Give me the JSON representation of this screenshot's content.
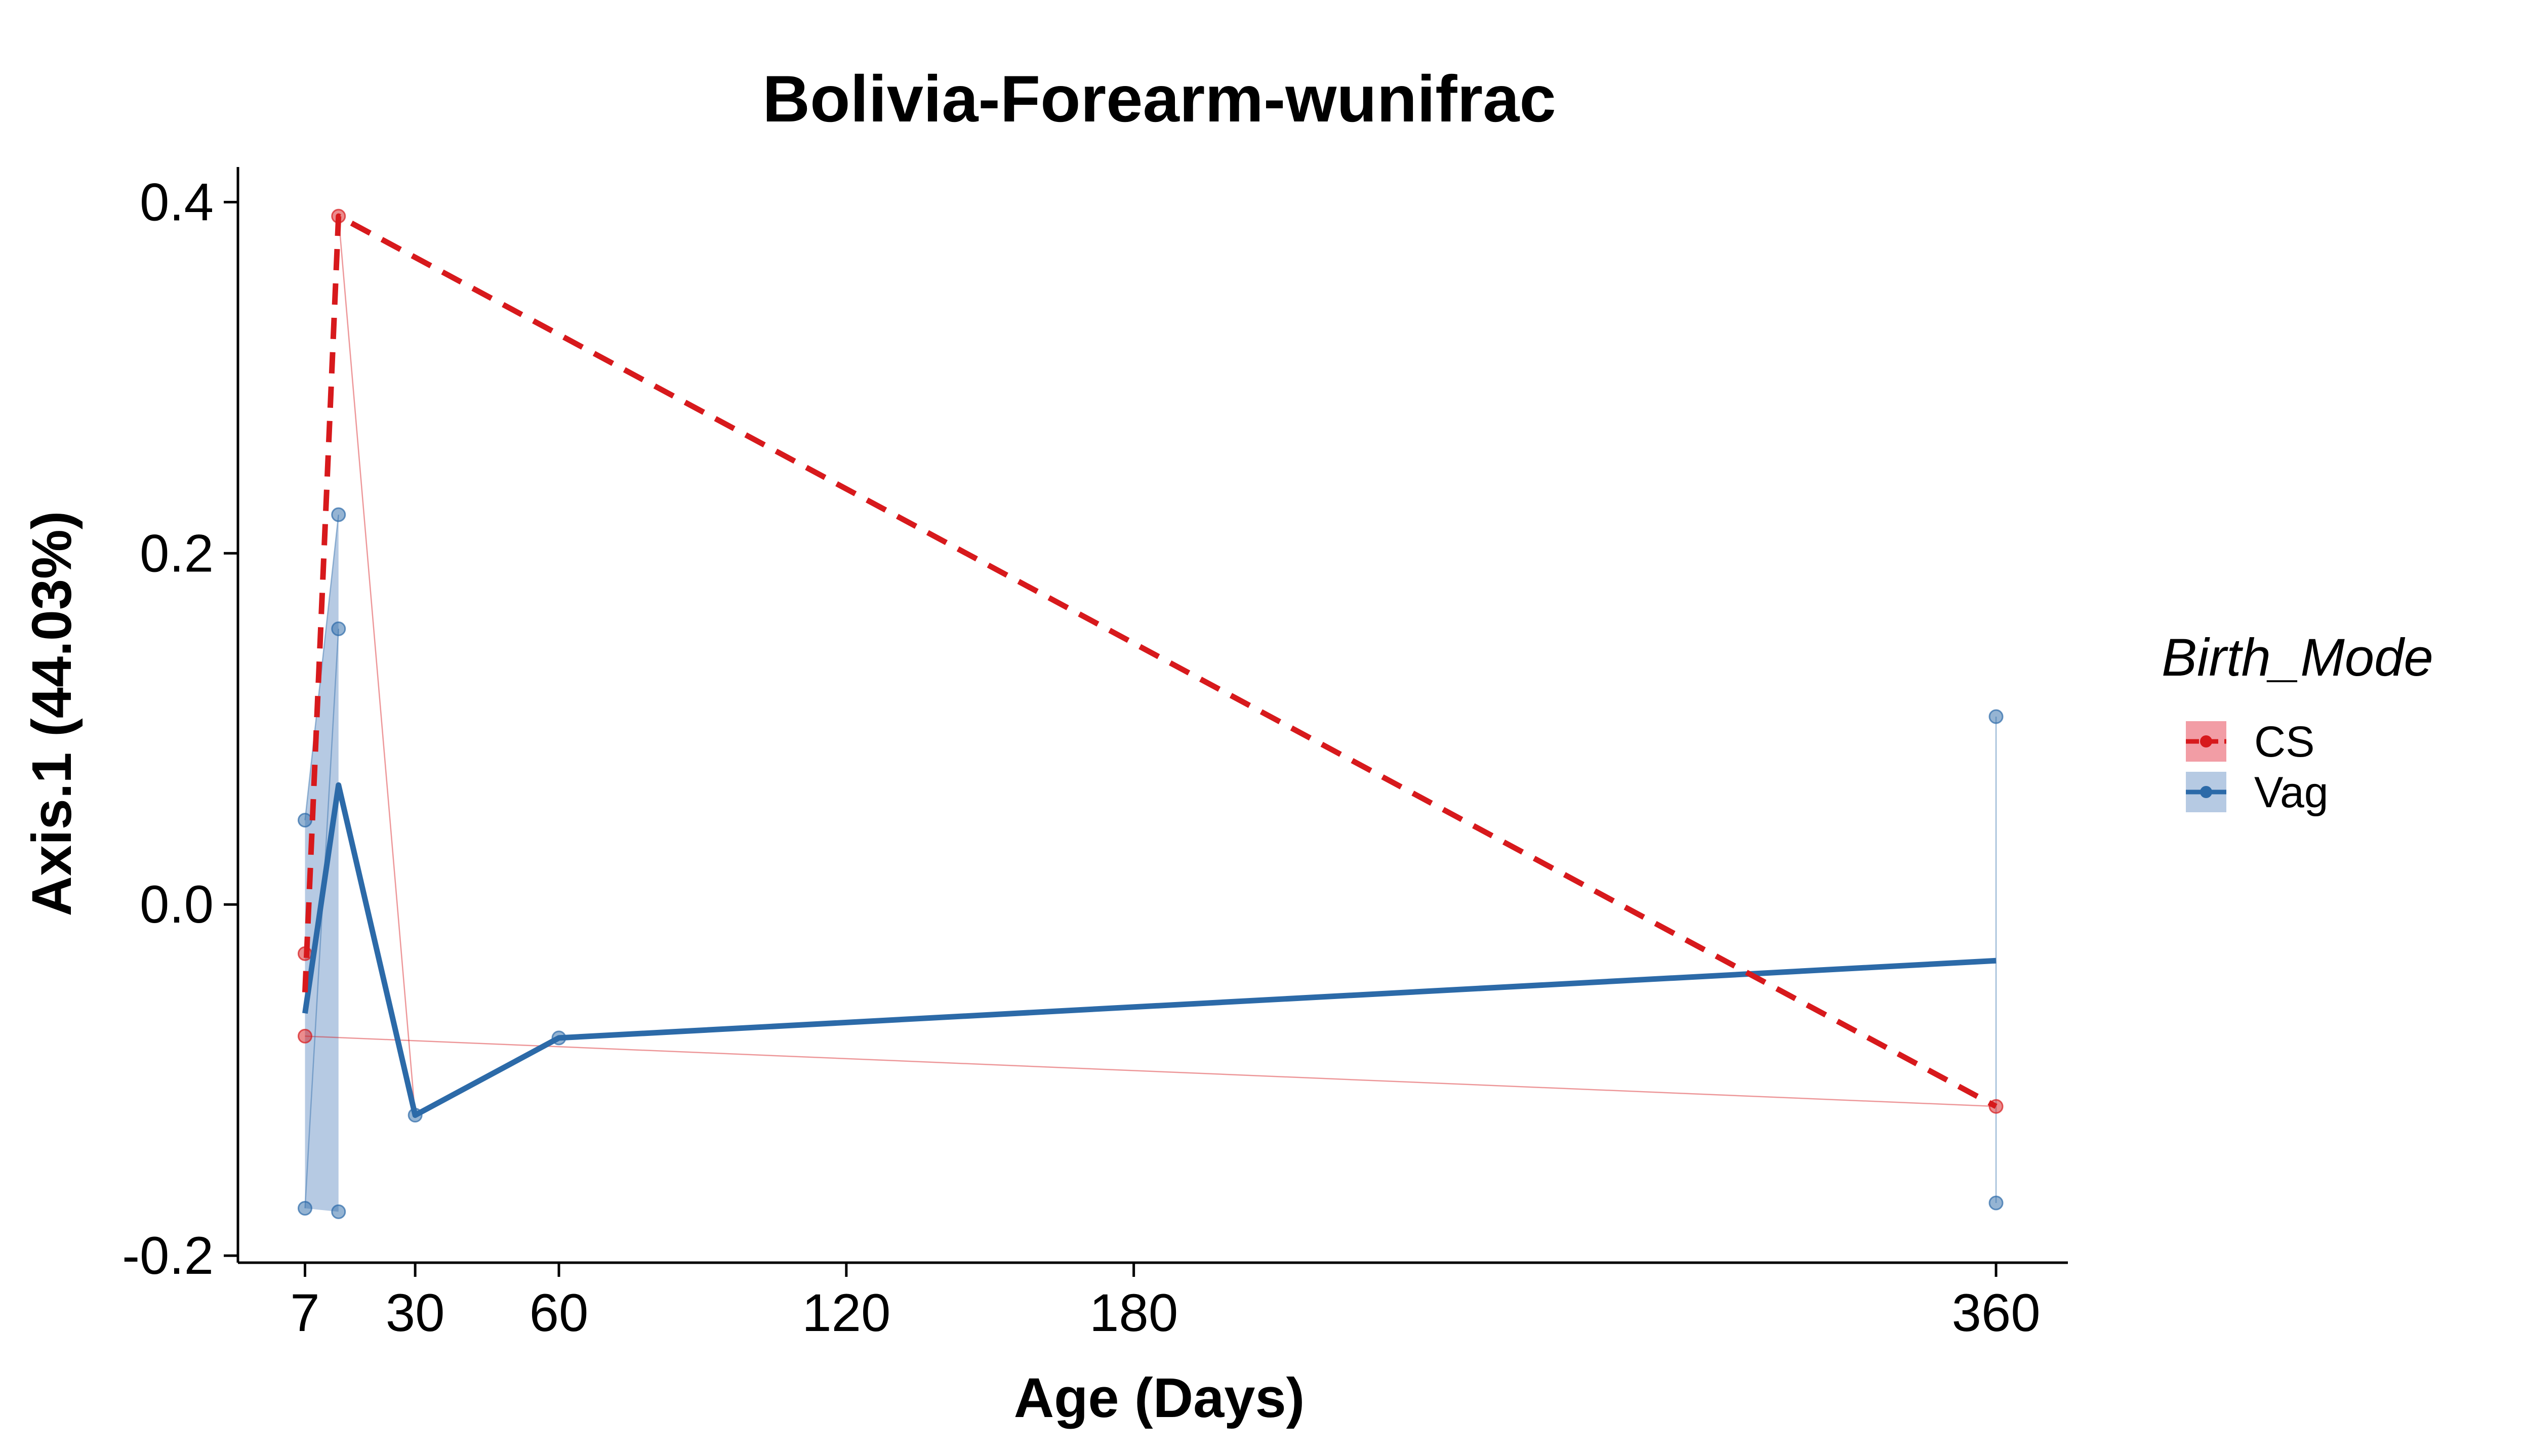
{
  "chart_data": {
    "type": "line",
    "title": "Bolivia-Forearm-wunifrac",
    "xlabel": "Age (Days)",
    "ylabel": "Axis.1 (44.03%)",
    "xlim": [
      -7,
      375
    ],
    "ylim": [
      -0.204,
      0.42
    ],
    "x_ticks": [
      7,
      30,
      60,
      120,
      180,
      360
    ],
    "x_tick_labels": [
      "7",
      "30",
      "60",
      "120",
      "180",
      "360"
    ],
    "y_ticks": [
      -0.2,
      0.0,
      0.2,
      0.4
    ],
    "y_tick_labels": [
      "-0.2",
      "0.0",
      "0.2",
      "0.4"
    ],
    "legend": {
      "title": "Birth_Mode",
      "position": "right",
      "entries": [
        {
          "label": "CS",
          "color": "#d7191c",
          "fill": "#f08c95",
          "linestyle": "dashed"
        },
        {
          "label": "Vag",
          "color": "#2c6aa8",
          "fill": "#a9c1de",
          "linestyle": "solid"
        }
      ]
    },
    "series": [
      {
        "name": "CS",
        "color": "#d7191c",
        "linestyle": "dashed",
        "mean_line": [
          {
            "x": 7,
            "y": -0.05
          },
          {
            "x": 14,
            "y": 0.392
          },
          {
            "x": 360,
            "y": -0.115
          }
        ],
        "points": [
          {
            "x": 7,
            "y": -0.028
          },
          {
            "x": 7,
            "y": -0.075
          },
          {
            "x": 14,
            "y": 0.392
          },
          {
            "x": 360,
            "y": -0.115
          }
        ],
        "subject_traces": [
          [
            {
              "x": 7,
              "y": -0.075
            },
            {
              "x": 360,
              "y": -0.115
            }
          ],
          [
            {
              "x": 14,
              "y": 0.392
            },
            {
              "x": 30,
              "y": -0.12
            }
          ]
        ],
        "ribbon": []
      },
      {
        "name": "Vag",
        "color": "#2c6aa8",
        "linestyle": "solid",
        "mean_line": [
          {
            "x": 7,
            "y": -0.062
          },
          {
            "x": 14,
            "y": 0.068
          },
          {
            "x": 30,
            "y": -0.12
          },
          {
            "x": 60,
            "y": -0.076
          },
          {
            "x": 360,
            "y": -0.032
          }
        ],
        "points": [
          {
            "x": 7,
            "y": 0.048
          },
          {
            "x": 7,
            "y": -0.173
          },
          {
            "x": 14,
            "y": 0.222
          },
          {
            "x": 14,
            "y": 0.157
          },
          {
            "x": 14,
            "y": -0.175
          },
          {
            "x": 30,
            "y": -0.12
          },
          {
            "x": 60,
            "y": -0.076
          },
          {
            "x": 360,
            "y": 0.107
          },
          {
            "x": 360,
            "y": -0.17
          }
        ],
        "subject_traces": [
          [
            {
              "x": 7,
              "y": 0.048
            },
            {
              "x": 14,
              "y": 0.222
            }
          ],
          [
            {
              "x": 7,
              "y": -0.173
            },
            {
              "x": 14,
              "y": 0.157
            }
          ],
          [
            {
              "x": 360,
              "y": 0.107
            },
            {
              "x": 360,
              "y": -0.17
            }
          ]
        ],
        "ribbon": [
          {
            "x": 7,
            "ymin": -0.173,
            "ymax": 0.048
          },
          {
            "x": 14,
            "ymin": -0.175,
            "ymax": 0.222
          }
        ]
      }
    ]
  }
}
